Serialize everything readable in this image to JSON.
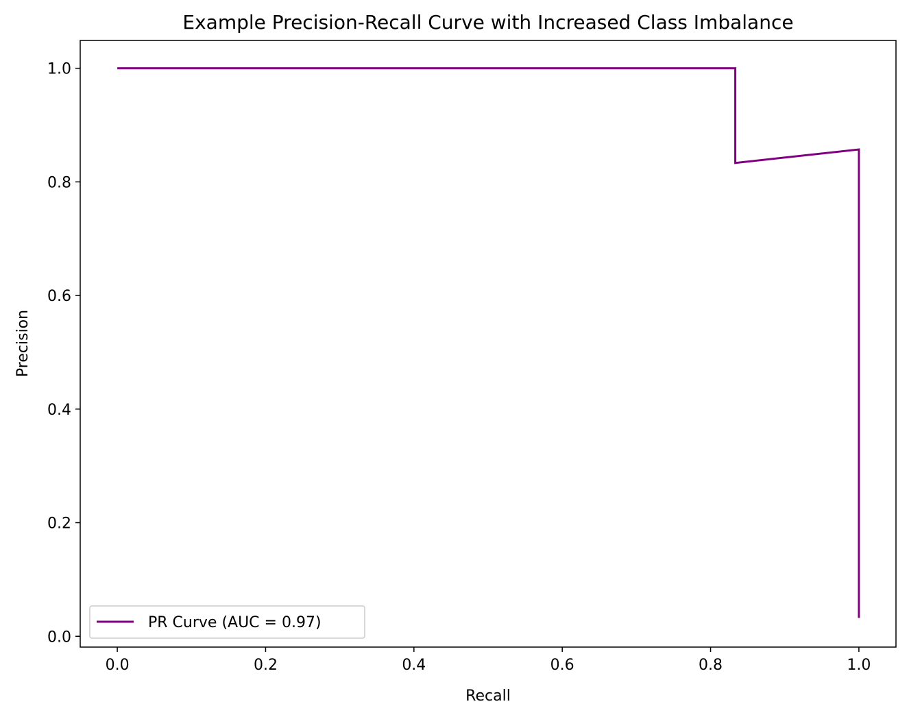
{
  "chart_data": {
    "type": "line",
    "title": "Example Precision-Recall Curve with Increased Class Imbalance",
    "xlabel": "Recall",
    "ylabel": "Precision",
    "xlim": [
      -0.05,
      1.05
    ],
    "ylim": [
      -0.019,
      1.049
    ],
    "x_ticks": [
      0.0,
      0.2,
      0.4,
      0.6,
      0.8,
      1.0
    ],
    "x_tick_labels": [
      "0.0",
      "0.2",
      "0.4",
      "0.6",
      "0.8",
      "1.0"
    ],
    "y_ticks": [
      0.0,
      0.2,
      0.4,
      0.6,
      0.8,
      1.0
    ],
    "y_tick_labels": [
      "0.0",
      "0.2",
      "0.4",
      "0.6",
      "0.8",
      "1.0"
    ],
    "grid": false,
    "legend_position": "lower-left",
    "series": [
      {
        "name": "PR Curve (AUC = 0.97)",
        "color": "#800080",
        "x": [
          0.0,
          0.8333,
          0.8333,
          1.0,
          1.0
        ],
        "y": [
          1.0,
          1.0,
          0.8333,
          0.8571,
          0.0323
        ]
      }
    ]
  }
}
